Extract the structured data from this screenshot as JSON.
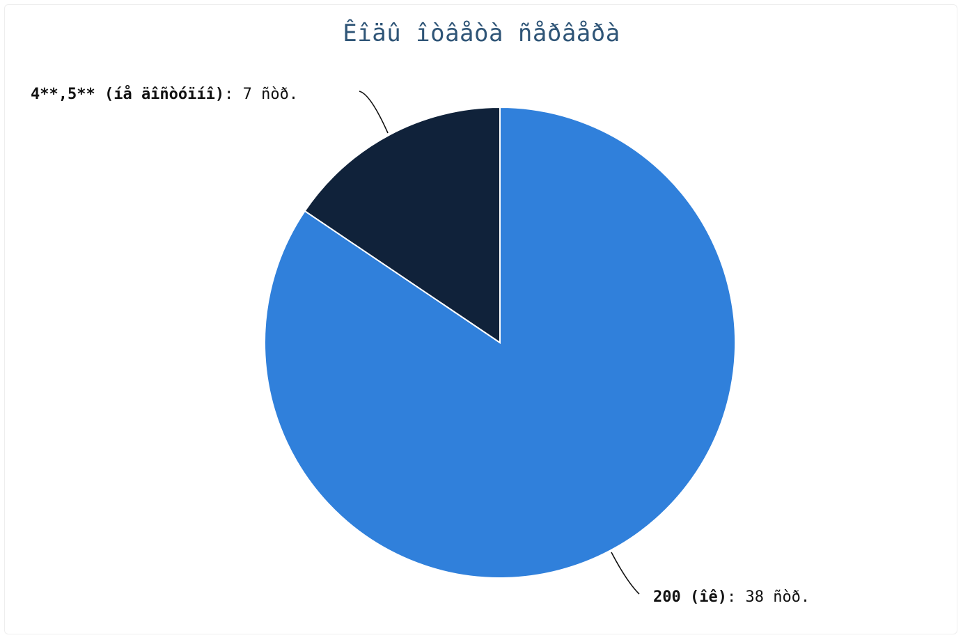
{
  "chart_data": {
    "type": "pie",
    "title": "Êîäû îòâåòà ñåðâåðà",
    "slices": [
      {
        "name": "200 (îê)",
        "value": 38,
        "suffix": ": 38 ñòð.",
        "color": "#3080db"
      },
      {
        "name": "4**,5** (íå äîñòóïíî)",
        "value": 7,
        "suffix": ": 7 ñòð.",
        "color": "#10223a"
      }
    ],
    "start_angle": "top",
    "direction": "clockwise",
    "legend": "none"
  }
}
